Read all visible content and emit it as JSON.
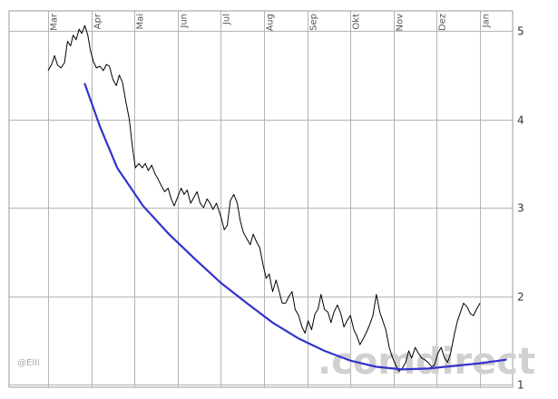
{
  "chart_data": {
    "type": "line",
    "title": "",
    "xlabel": "",
    "ylabel": "",
    "x_ticks": [
      "Mar",
      "Apr",
      "Mai",
      "Jun",
      "Jul",
      "Aug",
      "Sep",
      "Okt",
      "Nov",
      "Dez",
      "Jan"
    ],
    "y_ticks": [
      "1",
      "2",
      "3",
      "4",
      "5"
    ],
    "ylim": [
      1,
      5.2
    ],
    "xlim": [
      0,
      12
    ],
    "grid": true,
    "y_axis_position": "right",
    "series": [
      {
        "color": "#000000",
        "points": [
          [
            0.0,
            4.55
          ],
          [
            0.08,
            4.62
          ],
          [
            0.15,
            4.72
          ],
          [
            0.22,
            4.61
          ],
          [
            0.3,
            4.58
          ],
          [
            0.38,
            4.64
          ],
          [
            0.45,
            4.88
          ],
          [
            0.52,
            4.83
          ],
          [
            0.58,
            4.95
          ],
          [
            0.65,
            4.9
          ],
          [
            0.72,
            5.02
          ],
          [
            0.78,
            4.97
          ],
          [
            0.85,
            5.06
          ],
          [
            0.92,
            4.95
          ],
          [
            0.98,
            4.78
          ],
          [
            1.05,
            4.65
          ],
          [
            1.12,
            4.58
          ],
          [
            1.2,
            4.6
          ],
          [
            1.28,
            4.55
          ],
          [
            1.35,
            4.62
          ],
          [
            1.42,
            4.6
          ],
          [
            1.5,
            4.45
          ],
          [
            1.58,
            4.38
          ],
          [
            1.65,
            4.5
          ],
          [
            1.72,
            4.42
          ],
          [
            1.8,
            4.2
          ],
          [
            1.88,
            4.0
          ],
          [
            1.95,
            3.7
          ],
          [
            2.02,
            3.45
          ],
          [
            2.1,
            3.5
          ],
          [
            2.18,
            3.45
          ],
          [
            2.25,
            3.5
          ],
          [
            2.32,
            3.42
          ],
          [
            2.4,
            3.48
          ],
          [
            2.48,
            3.38
          ],
          [
            2.55,
            3.32
          ],
          [
            2.62,
            3.25
          ],
          [
            2.7,
            3.18
          ],
          [
            2.78,
            3.22
          ],
          [
            2.85,
            3.1
          ],
          [
            2.92,
            3.02
          ],
          [
            3.0,
            3.12
          ],
          [
            3.08,
            3.22
          ],
          [
            3.15,
            3.15
          ],
          [
            3.22,
            3.2
          ],
          [
            3.3,
            3.05
          ],
          [
            3.38,
            3.12
          ],
          [
            3.45,
            3.18
          ],
          [
            3.52,
            3.05
          ],
          [
            3.6,
            3.0
          ],
          [
            3.68,
            3.1
          ],
          [
            3.75,
            3.05
          ],
          [
            3.82,
            2.98
          ],
          [
            3.9,
            3.05
          ],
          [
            4.0,
            2.9
          ],
          [
            4.08,
            2.75
          ],
          [
            4.15,
            2.8
          ],
          [
            4.22,
            3.08
          ],
          [
            4.3,
            3.15
          ],
          [
            4.38,
            3.05
          ],
          [
            4.45,
            2.85
          ],
          [
            4.52,
            2.72
          ],
          [
            4.6,
            2.65
          ],
          [
            4.68,
            2.58
          ],
          [
            4.75,
            2.7
          ],
          [
            4.82,
            2.62
          ],
          [
            4.9,
            2.55
          ],
          [
            4.98,
            2.35
          ],
          [
            5.05,
            2.2
          ],
          [
            5.12,
            2.25
          ],
          [
            5.2,
            2.05
          ],
          [
            5.28,
            2.18
          ],
          [
            5.35,
            2.05
          ],
          [
            5.42,
            1.92
          ],
          [
            5.5,
            1.92
          ],
          [
            5.58,
            2.0
          ],
          [
            5.65,
            2.05
          ],
          [
            5.72,
            1.85
          ],
          [
            5.8,
            1.78
          ],
          [
            5.88,
            1.65
          ],
          [
            5.95,
            1.58
          ],
          [
            6.02,
            1.72
          ],
          [
            6.1,
            1.62
          ],
          [
            6.18,
            1.8
          ],
          [
            6.25,
            1.85
          ],
          [
            6.32,
            2.02
          ],
          [
            6.4,
            1.85
          ],
          [
            6.48,
            1.82
          ],
          [
            6.55,
            1.7
          ],
          [
            6.62,
            1.82
          ],
          [
            6.7,
            1.9
          ],
          [
            6.78,
            1.8
          ],
          [
            6.85,
            1.65
          ],
          [
            6.92,
            1.72
          ],
          [
            7.0,
            1.78
          ],
          [
            7.08,
            1.62
          ],
          [
            7.15,
            1.55
          ],
          [
            7.22,
            1.45
          ],
          [
            7.3,
            1.52
          ],
          [
            7.38,
            1.6
          ],
          [
            7.45,
            1.68
          ],
          [
            7.52,
            1.78
          ],
          [
            7.6,
            2.02
          ],
          [
            7.68,
            1.82
          ],
          [
            7.75,
            1.72
          ],
          [
            7.82,
            1.62
          ],
          [
            7.9,
            1.42
          ],
          [
            7.98,
            1.3
          ],
          [
            8.05,
            1.22
          ],
          [
            8.12,
            1.15
          ],
          [
            8.2,
            1.18
          ],
          [
            8.28,
            1.25
          ],
          [
            8.35,
            1.38
          ],
          [
            8.42,
            1.3
          ],
          [
            8.5,
            1.42
          ],
          [
            8.58,
            1.35
          ],
          [
            8.65,
            1.3
          ],
          [
            8.72,
            1.28
          ],
          [
            8.8,
            1.25
          ],
          [
            8.88,
            1.2
          ],
          [
            8.95,
            1.22
          ],
          [
            9.02,
            1.35
          ],
          [
            9.1,
            1.42
          ],
          [
            9.18,
            1.3
          ],
          [
            9.25,
            1.25
          ],
          [
            9.32,
            1.35
          ],
          [
            9.4,
            1.55
          ],
          [
            9.48,
            1.72
          ],
          [
            9.55,
            1.82
          ],
          [
            9.62,
            1.92
          ],
          [
            9.7,
            1.88
          ],
          [
            9.78,
            1.8
          ],
          [
            9.85,
            1.78
          ],
          [
            9.92,
            1.85
          ],
          [
            10.0,
            1.92
          ]
        ]
      },
      {
        "color": "#3333cc",
        "points": [
          [
            0.85,
            4.4
          ],
          [
            1.2,
            3.92
          ],
          [
            1.6,
            3.45
          ],
          [
            2.2,
            3.02
          ],
          [
            2.8,
            2.7
          ],
          [
            3.4,
            2.42
          ],
          [
            4.0,
            2.15
          ],
          [
            4.6,
            1.92
          ],
          [
            5.2,
            1.7
          ],
          [
            5.8,
            1.52
          ],
          [
            6.4,
            1.38
          ],
          [
            7.0,
            1.27
          ],
          [
            7.6,
            1.2
          ],
          [
            8.2,
            1.17
          ],
          [
            8.8,
            1.18
          ],
          [
            9.4,
            1.21
          ],
          [
            10.0,
            1.24
          ],
          [
            10.6,
            1.28
          ]
        ]
      }
    ]
  },
  "credit": "@Elli",
  "watermark": ".comdirect"
}
